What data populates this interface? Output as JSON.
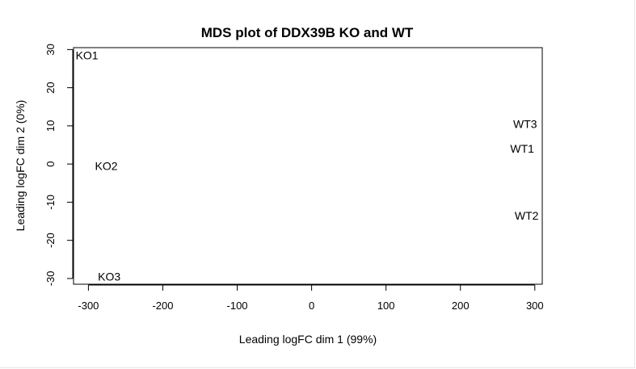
{
  "chart_data": {
    "type": "scatter",
    "title": "MDS plot of DDX39B KO and WT",
    "xlabel": "Leading logFC dim 1 (99%)",
    "ylabel": "Leading logFC dim 2 (0%)",
    "xlim": [
      -320,
      310
    ],
    "ylim": [
      -31.5,
      30.5
    ],
    "xticks": [
      -300,
      -200,
      -100,
      0,
      100,
      200,
      300
    ],
    "yticks": [
      -30,
      -20,
      -10,
      0,
      10,
      20,
      30
    ],
    "grid": false,
    "points": [
      {
        "label": "KO1",
        "x": -302,
        "y": 28.5
      },
      {
        "label": "KO2",
        "x": -276,
        "y": -0.5
      },
      {
        "label": "KO3",
        "x": -272,
        "y": -29.5
      },
      {
        "label": "WT1",
        "x": 283,
        "y": 4
      },
      {
        "label": "WT2",
        "x": 289,
        "y": -13.5
      },
      {
        "label": "WT3",
        "x": 287,
        "y": 10.5
      }
    ]
  }
}
